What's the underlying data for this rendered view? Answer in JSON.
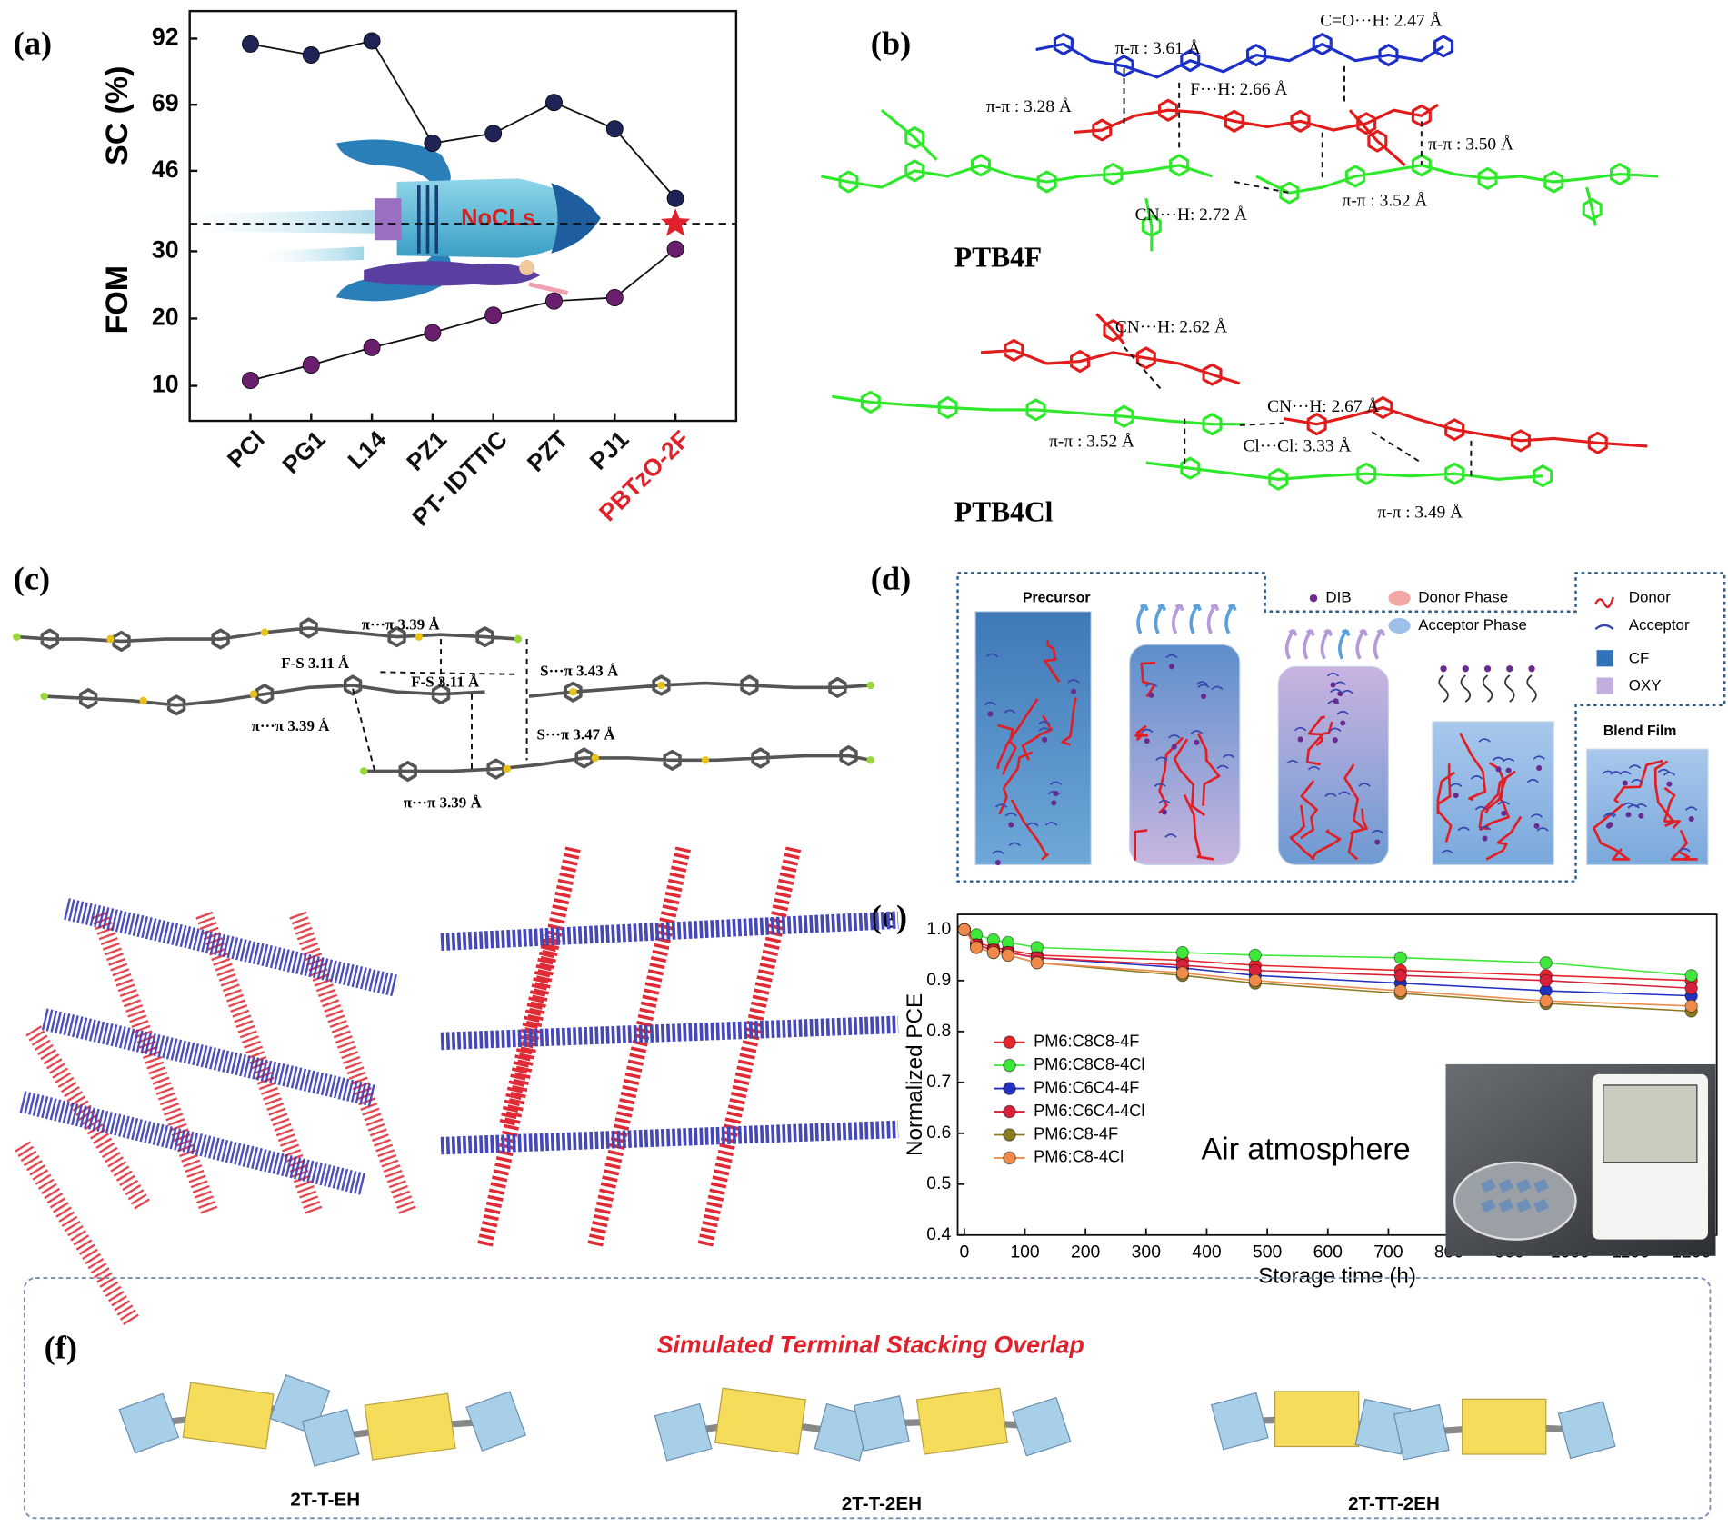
{
  "chart_data": [
    {
      "type": "line",
      "panel_label": "(a)",
      "categories": [
        "PCl",
        "PG1",
        "L14",
        "PZ1",
        "PT- IDTTIC",
        "PZT",
        "PJ1",
        "PBTzO-2F"
      ],
      "category_colors": [
        "#111111",
        "#111111",
        "#111111",
        "#111111",
        "#111111",
        "#111111",
        "#111111",
        "#e0202a"
      ],
      "ylabel": "SC (%)",
      "y2label": "FOM",
      "series": [
        {
          "color": "#1f2456",
          "values": [
            90.1,
            86.3,
            91.2,
            55.6,
            59.0,
            69.8,
            60.6,
            36.4
          ]
        },
        {
          "color": "#6a1f6e",
          "axis": "y2",
          "values": [
            10.8,
            13.1,
            15.7,
            17.9,
            20.5,
            22.6,
            23.1,
            30.3
          ]
        }
      ],
      "ylim": [
        27.6,
        101.6
      ],
      "yticks": [
        46,
        69,
        92
      ],
      "y2lim": [
        4.8,
        34.1
      ],
      "y2ticks": [
        10,
        20,
        30
      ],
      "annotations": [
        "NoCLs"
      ]
    },
    {
      "type": "line",
      "panel_label": "(e)",
      "xlabel": "Storage time (h)",
      "ylabel": "Normalized PCE",
      "x": [
        0,
        20,
        48,
        72,
        120,
        360,
        480,
        720,
        960,
        1200
      ],
      "series": [
        {
          "name": "PM6:C8C8-4F",
          "color": "#e8242a",
          "values": [
            1.0,
            0.975,
            0.965,
            0.96,
            0.95,
            0.94,
            0.93,
            0.92,
            0.91,
            0.9
          ]
        },
        {
          "name": "PM6:C8C8-4Cl",
          "color": "#3ee83a",
          "values": [
            1.0,
            0.99,
            0.98,
            0.975,
            0.965,
            0.955,
            0.95,
            0.945,
            0.935,
            0.91
          ]
        },
        {
          "name": "PM6:C6C4-4F",
          "color": "#2230c0",
          "values": [
            1.0,
            0.97,
            0.96,
            0.955,
            0.945,
            0.925,
            0.91,
            0.895,
            0.88,
            0.87
          ]
        },
        {
          "name": "PM6:C6C4-4Cl",
          "color": "#d8203a",
          "values": [
            1.0,
            0.97,
            0.96,
            0.955,
            0.945,
            0.93,
            0.92,
            0.91,
            0.9,
            0.885
          ]
        },
        {
          "name": "PM6:C8-4F",
          "color": "#8a7a20",
          "values": [
            1.0,
            0.965,
            0.955,
            0.95,
            0.935,
            0.91,
            0.895,
            0.875,
            0.855,
            0.84
          ]
        },
        {
          "name": "PM6:C8-4Cl",
          "color": "#f08a4a",
          "values": [
            1.0,
            0.965,
            0.955,
            0.95,
            0.935,
            0.915,
            0.9,
            0.88,
            0.86,
            0.85
          ]
        }
      ],
      "xlim": [
        -11,
        1242
      ],
      "xticks": [
        0,
        100,
        200,
        300,
        400,
        500,
        600,
        700,
        800,
        900,
        1000,
        1100,
        1200
      ],
      "ylim": [
        0.4,
        1.03
      ],
      "yticks": [
        0.4,
        0.5,
        0.6,
        0.7,
        0.8,
        0.9,
        {
          "value": 1,
          "label": "1.0"
        }
      ],
      "annotations": [
        "Air atmosphere"
      ]
    }
  ],
  "figure_b": {
    "panel_label": "(b)",
    "annotations": [
      "π-π : 3.61 Å",
      "C=O···H: 2.47 Å",
      "π-π : 3.28 Å",
      "F···H: 2.66 Å",
      "π-π : 3.50 Å",
      "CN···H: 2.72 Å",
      "π-π : 3.52 Å",
      "CN···H: 2.62 Å",
      "CN···H: 2.67 Å",
      "π-π : 3.52 Å",
      "Cl···Cl: 3.33 Å",
      "π-π : 3.49 Å"
    ],
    "compounds": [
      "PTB4F",
      "PTB4Cl"
    ]
  },
  "figure_c": {
    "panel_label": "(c)",
    "annotations": [
      "π···π 3.39 Å",
      "F-S  3.11 Å",
      "F-S  3.11 Å",
      "S···π  3.43 Å",
      "π···π 3.39 Å",
      "S···π  3.47 Å",
      "π···π 3.39 Å"
    ]
  },
  "figure_d": {
    "panel_label": "(d)",
    "stages": [
      "Precursor",
      "Blend Film"
    ],
    "legend": [
      "DIB",
      "Donor Phase",
      "Acceptor Phase",
      "CF",
      "OXY",
      "Donor",
      "Acceptor"
    ]
  },
  "figure_f": {
    "panel_label": "(f)",
    "title": "Simulated Terminal Stacking Overlap",
    "molecules": [
      "2T-T-EH",
      "2T-T-2EH",
      "2T-TT-2EH"
    ]
  }
}
